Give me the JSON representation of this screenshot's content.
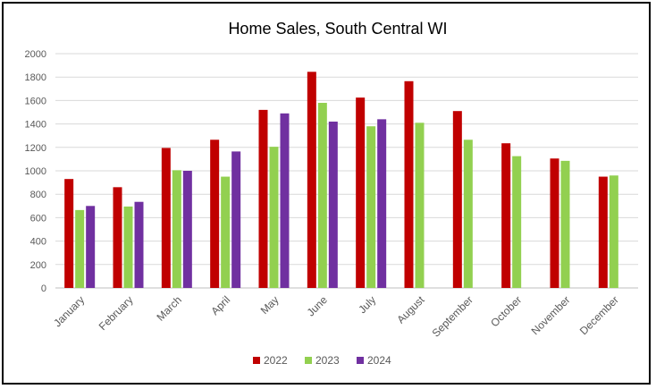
{
  "chart_data": {
    "type": "bar",
    "title": "Home Sales, South Central WI",
    "categories": [
      "January",
      "February",
      "March",
      "April",
      "May",
      "June",
      "July",
      "August",
      "September",
      "October",
      "November",
      "December"
    ],
    "series": [
      {
        "name": "2022",
        "color": "#C00000",
        "values": [
          930,
          860,
          1195,
          1265,
          1520,
          1845,
          1625,
          1765,
          1510,
          1235,
          1105,
          950
        ]
      },
      {
        "name": "2023",
        "color": "#92D050",
        "values": [
          665,
          695,
          1005,
          950,
          1205,
          1580,
          1380,
          1410,
          1265,
          1125,
          1085,
          960
        ]
      },
      {
        "name": "2024",
        "color": "#7030A0",
        "values": [
          700,
          735,
          1000,
          1165,
          1490,
          1420,
          1440,
          null,
          null,
          null,
          null,
          null
        ]
      }
    ],
    "ylim": [
      0,
      2000
    ],
    "yticks": [
      0,
      200,
      400,
      600,
      800,
      1000,
      1200,
      1400,
      1600,
      1800,
      2000
    ],
    "grid": true,
    "legend_position": "bottom"
  }
}
